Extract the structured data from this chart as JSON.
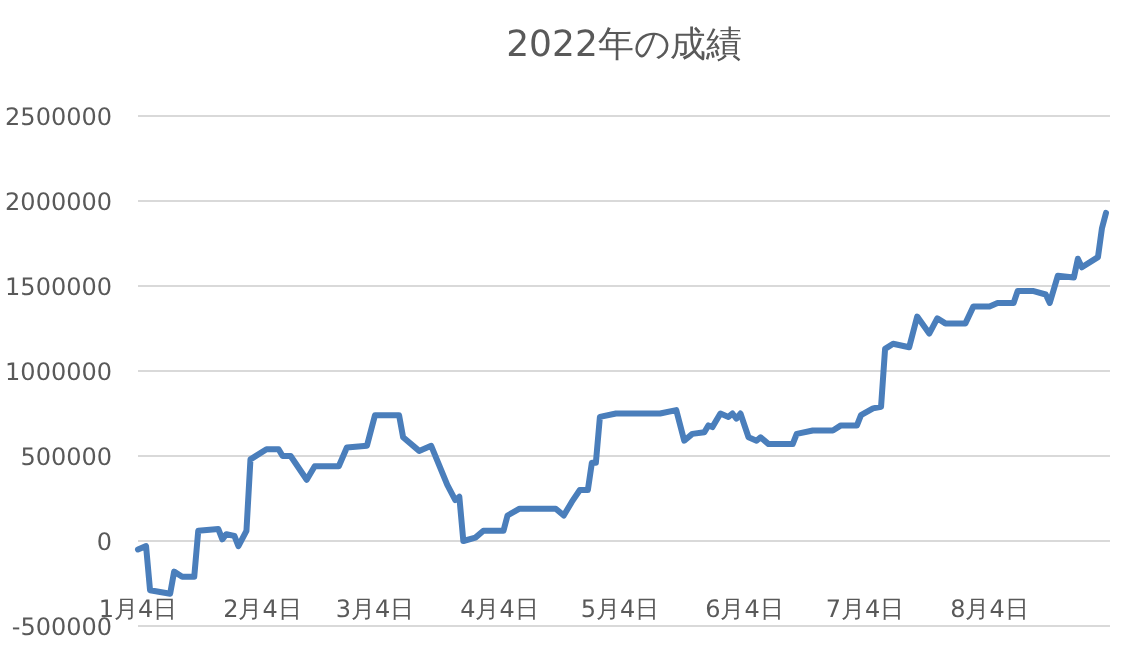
{
  "chart_data": {
    "type": "line",
    "title": "2022年の成績",
    "color": "#4a7ebb",
    "grid": "y",
    "legend": false,
    "xlim": [
      "2022-01-04",
      "2022-09-03"
    ],
    "xticks": [
      {
        "value": "2022-01-04",
        "label": "1月4日"
      },
      {
        "value": "2022-02-04",
        "label": "2月4日"
      },
      {
        "value": "2022-03-04",
        "label": "3月4日"
      },
      {
        "value": "2022-04-04",
        "label": "4月4日"
      },
      {
        "value": "2022-05-04",
        "label": "5月4日"
      },
      {
        "value": "2022-06-04",
        "label": "6月4日"
      },
      {
        "value": "2022-07-04",
        "label": "7月4日"
      },
      {
        "value": "2022-08-04",
        "label": "8月4日"
      }
    ],
    "ylim": [
      -500000,
      2500000
    ],
    "yticks": [
      -500000,
      0,
      500000,
      1000000,
      1500000,
      2000000,
      2500000
    ],
    "x": [
      "2022-01-04",
      "2022-01-06",
      "2022-01-07",
      "2022-01-12",
      "2022-01-13",
      "2022-01-15",
      "2022-01-18",
      "2022-01-19",
      "2022-01-24",
      "2022-01-25",
      "2022-01-26",
      "2022-01-28",
      "2022-01-29",
      "2022-01-31",
      "2022-02-01",
      "2022-02-05",
      "2022-02-08",
      "2022-02-09",
      "2022-02-11",
      "2022-02-15",
      "2022-02-17",
      "2022-02-23",
      "2022-02-25",
      "2022-03-02",
      "2022-03-04",
      "2022-03-10",
      "2022-03-11",
      "2022-03-15",
      "2022-03-18",
      "2022-03-22",
      "2022-03-24",
      "2022-03-25",
      "2022-03-26",
      "2022-03-29",
      "2022-03-31",
      "2022-04-05",
      "2022-04-06",
      "2022-04-09",
      "2022-04-18",
      "2022-04-20",
      "2022-04-22",
      "2022-04-24",
      "2022-04-26",
      "2022-04-27",
      "2022-04-28",
      "2022-04-29",
      "2022-05-03",
      "2022-05-14",
      "2022-05-18",
      "2022-05-20",
      "2022-05-22",
      "2022-05-25",
      "2022-05-26",
      "2022-05-27",
      "2022-05-29",
      "2022-05-31",
      "2022-06-01",
      "2022-06-02",
      "2022-06-03",
      "2022-06-05",
      "2022-06-07",
      "2022-06-08",
      "2022-06-10",
      "2022-06-16",
      "2022-06-17",
      "2022-06-21",
      "2022-06-26",
      "2022-06-28",
      "2022-07-02",
      "2022-07-03",
      "2022-07-06",
      "2022-07-08",
      "2022-07-09",
      "2022-07-11",
      "2022-07-15",
      "2022-07-17",
      "2022-07-20",
      "2022-07-22",
      "2022-07-24",
      "2022-07-29",
      "2022-07-31",
      "2022-08-04",
      "2022-08-06",
      "2022-08-10",
      "2022-08-11",
      "2022-08-15",
      "2022-08-18",
      "2022-08-19",
      "2022-08-21",
      "2022-08-25",
      "2022-08-26",
      "2022-08-27",
      "2022-08-31",
      "2022-09-01",
      "2022-09-02"
    ],
    "values": [
      -50000,
      -30000,
      -290000,
      -310000,
      -180000,
      -210000,
      -210000,
      60000,
      70000,
      10000,
      40000,
      30000,
      -30000,
      60000,
      480000,
      540000,
      540000,
      500000,
      500000,
      360000,
      440000,
      440000,
      550000,
      560000,
      740000,
      740000,
      610000,
      530000,
      560000,
      330000,
      240000,
      260000,
      0,
      20000,
      60000,
      60000,
      150000,
      190000,
      190000,
      150000,
      230000,
      300000,
      300000,
      460000,
      460000,
      730000,
      750000,
      750000,
      770000,
      590000,
      630000,
      640000,
      680000,
      670000,
      750000,
      730000,
      750000,
      720000,
      750000,
      610000,
      590000,
      610000,
      570000,
      570000,
      630000,
      650000,
      650000,
      680000,
      680000,
      740000,
      780000,
      790000,
      1130000,
      1160000,
      1140000,
      1320000,
      1220000,
      1310000,
      1280000,
      1280000,
      1380000,
      1380000,
      1400000,
      1400000,
      1470000,
      1470000,
      1450000,
      1400000,
      1560000,
      1550000,
      1660000,
      1610000,
      1670000,
      1840000,
      1930000
    ]
  }
}
